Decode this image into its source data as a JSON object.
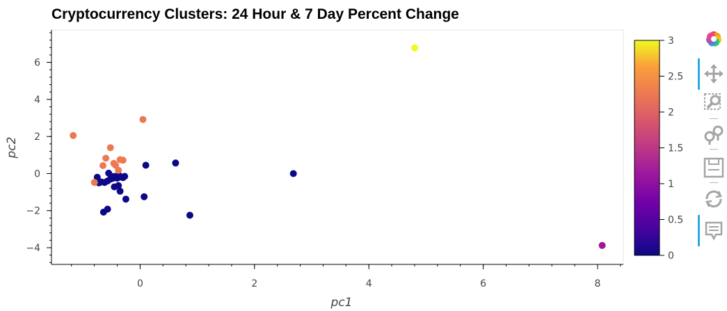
{
  "chart_data": {
    "type": "scatter",
    "title": "Cryptocurrency Clusters: 24 Hour & 7 Day Percent Change",
    "xlabel": "pc1",
    "ylabel": "pc2",
    "xlim": [
      -1.55,
      8.45
    ],
    "ylim": [
      -4.9,
      7.75
    ],
    "x_ticks": [
      0,
      2,
      4,
      6,
      8
    ],
    "y_ticks": [
      -4,
      -2,
      0,
      2,
      4,
      6
    ],
    "colorbar": {
      "palette": "plasma",
      "range": [
        0,
        3
      ],
      "ticks": [
        "0",
        "0.5",
        "1",
        "1.5",
        "2",
        "2.5",
        "3"
      ]
    },
    "grid": false,
    "series": [
      {
        "class": 0,
        "color": "#0d0887",
        "points": [
          [
            -0.75,
            -0.2
          ],
          [
            -0.72,
            -0.5
          ],
          [
            -0.68,
            -0.45
          ],
          [
            -0.62,
            -0.48
          ],
          [
            -0.57,
            -0.4
          ],
          [
            -0.55,
            0.02
          ],
          [
            -0.52,
            -0.3
          ],
          [
            -0.5,
            -0.15
          ],
          [
            -0.47,
            -0.25
          ],
          [
            -0.44,
            -0.15
          ],
          [
            -0.4,
            -0.25
          ],
          [
            -0.37,
            -0.1
          ],
          [
            -0.34,
            -0.18
          ],
          [
            -0.3,
            -0.22
          ],
          [
            -0.27,
            -0.15
          ],
          [
            -0.45,
            -0.72
          ],
          [
            -0.38,
            -0.65
          ],
          [
            -0.35,
            -0.95
          ],
          [
            -0.25,
            -1.38
          ],
          [
            0.07,
            -1.25
          ],
          [
            0.1,
            0.45
          ],
          [
            0.62,
            0.57
          ],
          [
            0.87,
            -2.25
          ],
          [
            2.68,
            0.0
          ],
          [
            -0.64,
            -2.08
          ],
          [
            -0.57,
            -1.92
          ]
        ]
      },
      {
        "class": 1,
        "color": "#9c179e",
        "points": [
          [
            8.08,
            -3.88
          ]
        ]
      },
      {
        "class": 2,
        "color": "#ed7953",
        "points": [
          [
            -1.17,
            2.05
          ],
          [
            -0.52,
            1.4
          ],
          [
            -0.6,
            0.83
          ],
          [
            -0.65,
            0.43
          ],
          [
            -0.46,
            0.55
          ],
          [
            -0.43,
            0.45
          ],
          [
            -0.38,
            0.18
          ],
          [
            -0.35,
            0.75
          ],
          [
            -0.3,
            0.72
          ],
          [
            -0.8,
            -0.48
          ],
          [
            0.05,
            2.92
          ]
        ]
      },
      {
        "class": 3,
        "color": "#f0f921",
        "points": [
          [
            4.8,
            6.78
          ]
        ]
      }
    ]
  },
  "toolbar": {
    "tools": [
      {
        "icon": "bokeh-logo-icon",
        "active": false
      },
      {
        "icon": "pan-icon",
        "active": true
      },
      {
        "icon": "box-zoom-icon",
        "active": false
      },
      {
        "icon": "wheel-zoom-icon",
        "active": false
      },
      {
        "icon": "save-icon",
        "active": false
      },
      {
        "icon": "reset-icon",
        "active": false
      },
      {
        "icon": "hover-icon",
        "active": true
      }
    ]
  }
}
